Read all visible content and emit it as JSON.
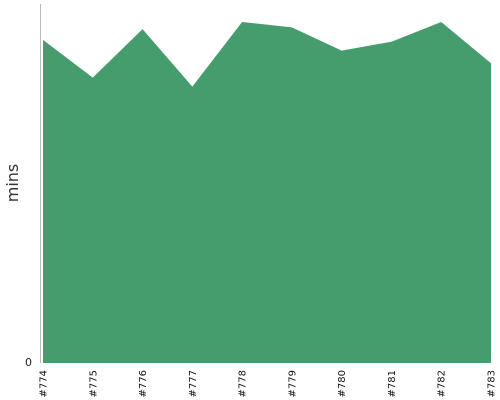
{
  "chart_data": {
    "type": "area",
    "title": "",
    "xlabel": "",
    "ylabel": "mins",
    "categories": [
      "#774",
      "#775",
      "#776",
      "#777",
      "#778",
      "#779",
      "#780",
      "#781",
      "#782",
      "#783"
    ],
    "series": [
      {
        "values": [
          90.0,
          79.5,
          93.0,
          77.0,
          95.0,
          93.5,
          87.0,
          89.5,
          95.0,
          83.5
        ]
      }
    ],
    "ylim": [
      0,
      100
    ],
    "yticks": [
      0
    ],
    "grid": false,
    "legend": "none",
    "colors": {
      "fill": "#459c6c",
      "axis": "#bbbbbb"
    }
  }
}
